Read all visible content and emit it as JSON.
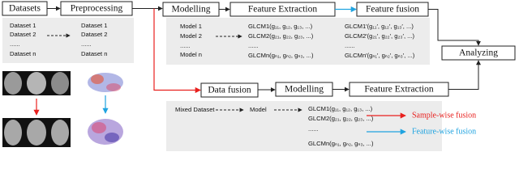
{
  "nodes": [
    "Datasets",
    "Preprocessing",
    "Modelling",
    "Feature Extraction",
    "Feature fusion",
    "Analyzing",
    "Data fusion",
    "Modelling",
    "Feature Extraction"
  ],
  "panel_preprocessing": {
    "inputs": [
      "Dataset 1",
      "Dataset 2",
      "......",
      "Dataset n"
    ],
    "outputs": [
      "Dataset 1",
      "Dataset 2",
      "......",
      "Dataset n"
    ]
  },
  "panel_feature": {
    "models": [
      "Model 1",
      "Model 2",
      "......",
      "Model n"
    ],
    "glcm": [
      "GLCM1(g₁₁, g₁₂, g₁₃, ...)",
      "GLCM2(g₂₁, g₂₂, g₂₃, ...)",
      "......",
      "GLCMn(gₙ₁, gₙ₂, gₙ₃, ...)"
    ],
    "fused": [
      "GLCM1′(g₁₁′, g₁₂′, g₁₃′, ...)",
      "GLCM2′(g₂₁′, g₂₂′, g₂₃′, ...)",
      "......",
      "GLCMn′(gₙ₁′, gₙ₂′, gₙ₃′, ...)"
    ]
  },
  "panel_sample": {
    "input": "Mixed Dataset",
    "model": "Model",
    "glcm": [
      "GLCM1(g₁₁, g₁₂, g₁₃, ...)",
      "GLCM2(g₂₁, g₂₂, g₂₃, ...)",
      "......",
      "GLCMn(gₙ₁, gₙ₂, gₙ₃, ...)"
    ]
  },
  "legend": [
    "Sample-wise fusion",
    "Feature-wise fusion"
  ]
}
